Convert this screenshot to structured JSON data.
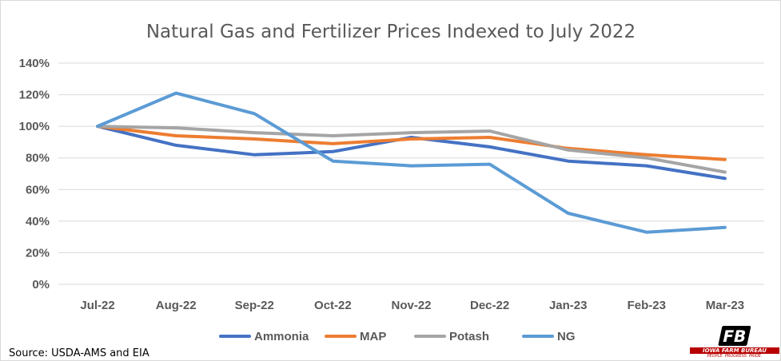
{
  "chart_data": {
    "type": "line",
    "title": "Natural Gas and Fertilizer Prices Indexed to July 2022",
    "categories": [
      "Jul-22",
      "Aug-22",
      "Sep-22",
      "Oct-22",
      "Nov-22",
      "Dec-22",
      "Jan-23",
      "Feb-23",
      "Mar-23"
    ],
    "ylim": [
      0,
      140
    ],
    "y_ticks": [
      0,
      20,
      40,
      60,
      80,
      100,
      120,
      140
    ],
    "y_tick_labels": [
      "0%",
      "20%",
      "40%",
      "60%",
      "80%",
      "100%",
      "120%",
      "140%"
    ],
    "grid": true,
    "legend_position": "bottom",
    "series": [
      {
        "name": "Ammonia",
        "color": "#4472c4",
        "values": [
          100,
          88,
          82,
          84,
          93,
          87,
          78,
          75,
          67
        ]
      },
      {
        "name": "MAP",
        "color": "#ed7d31",
        "values": [
          100,
          94,
          92,
          89,
          92,
          93,
          86,
          82,
          79
        ]
      },
      {
        "name": "Potash",
        "color": "#a5a5a5",
        "values": [
          100,
          99,
          96,
          94,
          96,
          97,
          85,
          80,
          71
        ]
      },
      {
        "name": "NG",
        "color": "#5b9bd5",
        "values": [
          100,
          121,
          108,
          78,
          75,
          76,
          45,
          33,
          36
        ]
      }
    ],
    "source": "Source: USDA-AMS and EIA"
  },
  "logo": {
    "mark": "FB",
    "name": "IOWA FARM BUREAU",
    "tagline": "PEOPLE. PROGRESS. PRIDE."
  }
}
